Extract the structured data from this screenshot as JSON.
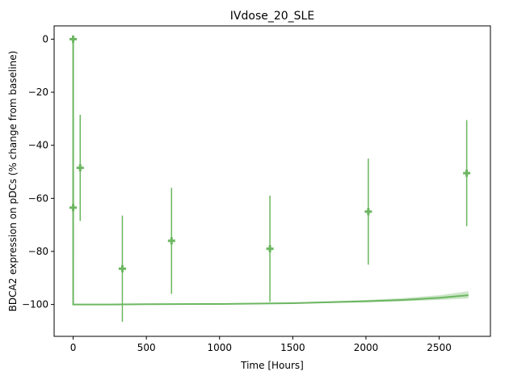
{
  "chart_data": {
    "type": "line",
    "title": "IVdose_20_SLE",
    "xlabel": "Time [Hours]",
    "ylabel": "BDCA2 expression on pDCs (% change from baseline)",
    "xlim": [
      -130,
      2850
    ],
    "ylim": [
      -112,
      5
    ],
    "xticks": [
      0,
      500,
      1000,
      1500,
      2000,
      2500
    ],
    "yticks": [
      0,
      -20,
      -40,
      -60,
      -80,
      -100
    ],
    "grid": false,
    "color": "#6cb661",
    "observed": {
      "x": [
        0,
        0,
        48,
        336,
        672,
        1344,
        2016,
        2688
      ],
      "y": [
        0,
        -63.5,
        -48.5,
        -86.5,
        -76,
        -79,
        -65,
        -50.5
      ],
      "err": [
        0,
        20,
        20,
        20,
        20,
        20,
        20,
        20
      ]
    },
    "model": {
      "x": [
        0,
        0,
        250,
        500,
        1000,
        1500,
        2000,
        2250,
        2500,
        2700
      ],
      "y": [
        0,
        -100,
        -100,
        -99.9,
        -99.8,
        -99.5,
        -98.8,
        -98.3,
        -97.5,
        -96.5
      ],
      "band_lower": [
        0,
        -100,
        -100,
        -100,
        -99.9,
        -99.7,
        -99.2,
        -98.8,
        -98.3,
        -97.7
      ],
      "band_upper": [
        0,
        -100,
        -100,
        -99.8,
        -99.6,
        -99.2,
        -98.3,
        -97.6,
        -96.5,
        -95
      ]
    }
  }
}
